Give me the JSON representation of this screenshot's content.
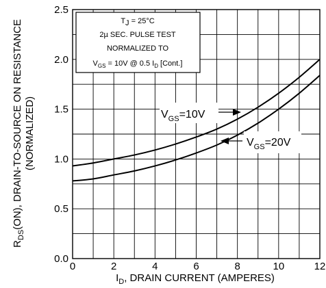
{
  "chart_data": {
    "type": "line",
    "x_axis": {
      "label_main": "I",
      "label_sub": "D",
      "label_rest": ", DRAIN CURRENT (AMPERES)",
      "range": [
        0,
        12
      ],
      "ticks": [
        "0",
        "2",
        "4",
        "6",
        "8",
        "10",
        "12"
      ]
    },
    "y_axis": {
      "label_line1_main": "R",
      "label_line1_sub": "DS",
      "label_line1_rest": "(ON), DRAIN-TO-SOURCE ON RESISTANCE",
      "label_line2": "(NORMALIZED)",
      "range": [
        0.0,
        2.5
      ],
      "ticks": [
        "0.0",
        "0.5",
        "1.0",
        "1.5",
        "2.0",
        "2.5"
      ]
    },
    "grid": true,
    "conditions": {
      "line1_main": "T",
      "line1_sub": "J",
      "line1_rest": " = 25°C",
      "line2": "2µ SEC. PULSE TEST",
      "line3": "NORMALIZED TO",
      "line4_main": "V",
      "line4_sub": "GS",
      "line4_mid": " = 10V  @  0.5  I",
      "line4_sub2": "D",
      "line4_rest": " [Cont.]"
    },
    "series": [
      {
        "label_main": "V",
        "label_sub": "GS",
        "label_rest": "=10V",
        "x": [
          0,
          1,
          2,
          3,
          4,
          5,
          6,
          7,
          8,
          9,
          10,
          11,
          12
        ],
        "y": [
          0.93,
          0.96,
          1.0,
          1.04,
          1.09,
          1.15,
          1.22,
          1.3,
          1.4,
          1.52,
          1.66,
          1.82,
          2.0
        ]
      },
      {
        "label_main": "V",
        "label_sub": "GS",
        "label_rest": "=20V",
        "x": [
          0,
          1,
          2,
          3,
          4,
          5,
          6,
          7,
          8,
          9,
          10,
          11,
          12
        ],
        "y": [
          0.78,
          0.8,
          0.84,
          0.88,
          0.93,
          0.99,
          1.06,
          1.14,
          1.24,
          1.36,
          1.5,
          1.66,
          1.84
        ]
      }
    ]
  }
}
